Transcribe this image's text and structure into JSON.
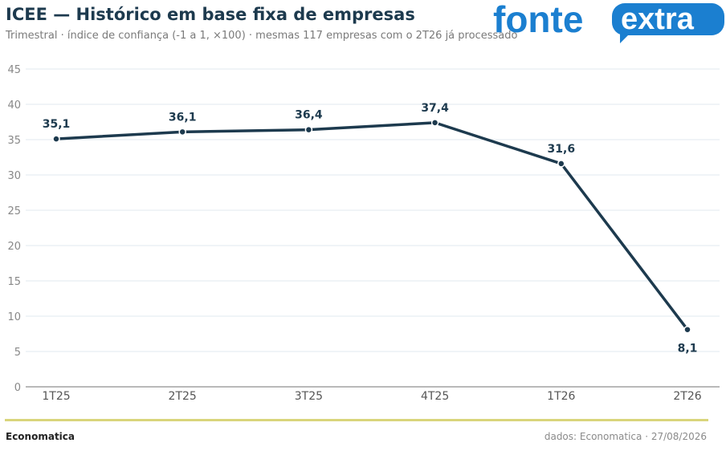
{
  "header": {
    "title": "ICEE — Histórico em base fixa de empresas",
    "subtitle": "Trimestral · índice de confiança (-1 a 1, ×100) · mesmas 117 empresas com o 2T26 já processado"
  },
  "logo": {
    "word1": "fonte",
    "word2": "extra",
    "color_blue": "#1b7fd0",
    "color_white": "#ffffff"
  },
  "chart_data": {
    "type": "line",
    "categories": [
      "1T25",
      "2T25",
      "3T25",
      "4T25",
      "1T26",
      "2T26"
    ],
    "values": [
      35.1,
      36.1,
      36.4,
      37.4,
      31.6,
      8.1
    ],
    "value_labels": [
      "35,1",
      "36,1",
      "36,4",
      "37,4",
      "31,6",
      "8,1"
    ],
    "ylim": [
      0,
      45
    ],
    "yticks": [
      0,
      5,
      10,
      15,
      20,
      25,
      30,
      35,
      40,
      45
    ],
    "grid": true,
    "line_color": "#1d3a4e",
    "grid_color": "#e8eef2"
  },
  "footer": {
    "source_brand": "Economatica",
    "source_note": "dados: Economatica · 27/08/2026",
    "rule_color": "#d9d57c"
  }
}
